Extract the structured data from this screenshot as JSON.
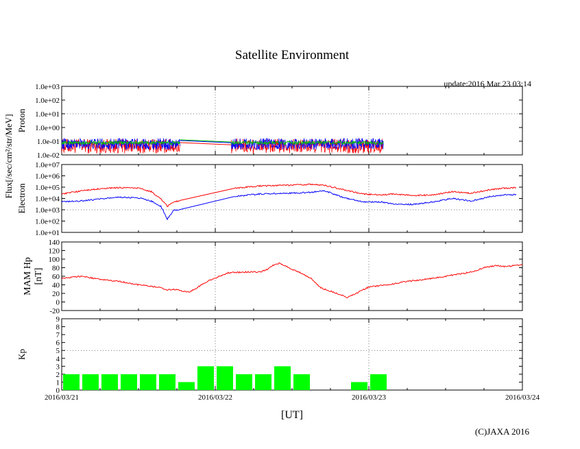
{
  "page": {
    "title": "Satellite Environment",
    "update": "update:2016 Mar 23 03:14",
    "xlabel": "[UT]",
    "copyright": "(C)JAXA 2016",
    "flux_label": "Flux[/sec/cm²/str/MeV]"
  },
  "chart_data": [
    {
      "type": "line",
      "name": "proton",
      "ylabel": "Proton",
      "scale": "log",
      "ylim": [
        0.01,
        1000
      ],
      "yticks": [
        "1.0e-02",
        "1.0e-01",
        "1.0e+00",
        "1.0e+01",
        "1.0e+02",
        "1.0e+03"
      ],
      "xlim": [
        0,
        72
      ],
      "xticks": [
        "2016/03/21",
        "2016/03/22",
        "2016/03/23",
        "2016/03/24"
      ],
      "grid": "dotted at 2016/03/22, 2016/03/23 and at 1.0e+01",
      "segments": [
        [
          0,
          18.5
        ],
        [
          26.5,
          50.3
        ]
      ],
      "series": [
        {
          "color": "#ff0000",
          "noisy": true,
          "base": 0.05,
          "spread": 2.5
        },
        {
          "color": "#0000ff",
          "noisy": true,
          "base": 0.07,
          "spread": 1.6
        },
        {
          "color": "#00c000",
          "noisy": true,
          "base": 0.08,
          "spread": 0.35
        }
      ]
    },
    {
      "type": "line",
      "name": "electron",
      "ylabel": "Electron",
      "scale": "log",
      "ylim": [
        10,
        10000000
      ],
      "yticks": [
        "1.0e+01",
        "1.0e+02",
        "1.0e+03",
        "1.0e+04",
        "1.0e+05",
        "1.0e+06",
        "1.0e+07"
      ],
      "xlim": [
        0,
        72
      ],
      "grid": "dotted at 2016/03/22, 2016/03/23 and at 1.0e+03",
      "series": [
        {
          "color": "#ff0000",
          "x": [
            0,
            3,
            6,
            9,
            12,
            14,
            15.5,
            16.5,
            17.5,
            18.5,
            27,
            31,
            36,
            39,
            41,
            44,
            47,
            50,
            52,
            55,
            58,
            61,
            64,
            67,
            69,
            71
          ],
          "y": [
            25000,
            45000,
            75000,
            90000,
            80000,
            40000,
            9000,
            2000,
            5000,
            6000,
            80000,
            130000,
            150000,
            180000,
            150000,
            60000,
            25000,
            20000,
            25000,
            18000,
            20000,
            40000,
            30000,
            60000,
            80000,
            90000
          ]
        },
        {
          "color": "#0000ff",
          "x": [
            0,
            3,
            6,
            9,
            12,
            14,
            15.5,
            16.5,
            17.5,
            18.5,
            27,
            31,
            36,
            39,
            41,
            44,
            47,
            50,
            52,
            55,
            58,
            61,
            64,
            67,
            69,
            71
          ],
          "y": [
            5000,
            6000,
            9000,
            13000,
            11000,
            6000,
            2000,
            150,
            900,
            1000,
            15000,
            25000,
            30000,
            35000,
            50000,
            12000,
            5000,
            5000,
            3000,
            3000,
            5000,
            10000,
            6000,
            15000,
            20000,
            22000
          ]
        }
      ]
    },
    {
      "type": "line",
      "name": "mam_hp",
      "ylabel": "MAM Hp",
      "ylabel2": "[nT]",
      "ylim": [
        -20,
        140
      ],
      "yticks": [
        "-20",
        "0",
        "20",
        "40",
        "60",
        "80",
        "100",
        "120",
        "140"
      ],
      "xlim": [
        0,
        72
      ],
      "grid": "dotted at 2016/03/22, 2016/03/23",
      "series": [
        {
          "color": "#ff0000",
          "x": [
            0,
            3,
            6,
            9,
            12,
            15,
            16.5,
            17.5,
            19,
            20,
            23,
            26,
            29,
            31,
            32,
            33,
            34,
            37,
            39,
            40.5,
            42,
            44,
            44.5,
            46,
            48,
            51,
            54,
            58,
            62,
            64,
            66,
            68,
            69.5,
            70.5,
            72
          ],
          "y": [
            55,
            60,
            53,
            48,
            40,
            35,
            28,
            30,
            25,
            23,
            50,
            68,
            70,
            70,
            75,
            85,
            90,
            70,
            55,
            33,
            25,
            15,
            10,
            20,
            35,
            40,
            48,
            55,
            65,
            70,
            80,
            85,
            82,
            85,
            87
          ]
        }
      ]
    },
    {
      "type": "bar",
      "name": "kp",
      "ylabel": "Kp",
      "ylim": [
        0,
        9
      ],
      "yticks": [
        "0",
        "1",
        "2",
        "3",
        "4",
        "5",
        "6",
        "7",
        "8",
        "9"
      ],
      "xlim": [
        0,
        72
      ],
      "grid": "dotted at 2016/03/22, 2016/03/23 and at Kp 5",
      "color": "#00ff00",
      "values": [
        2,
        2,
        2,
        2,
        2,
        2,
        1,
        3,
        3,
        2,
        2,
        3,
        2,
        null,
        null,
        1,
        2
      ]
    }
  ]
}
